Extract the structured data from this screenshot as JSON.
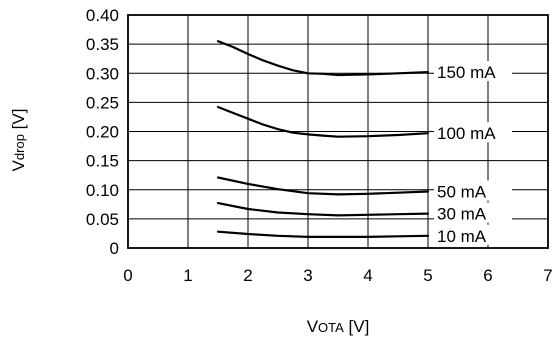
{
  "chart_data": {
    "type": "line",
    "xlabel": {
      "main": "V",
      "sub": "OTA",
      "unit": " [V]"
    },
    "ylabel": {
      "main": "V",
      "sub": "drop",
      "unit": " [V]"
    },
    "xlim": [
      0,
      7
    ],
    "ylim": [
      0,
      0.4
    ],
    "xticks": [
      "0",
      "1",
      "2",
      "3",
      "4",
      "5",
      "6",
      "7"
    ],
    "yticks": [
      "0",
      "0.05",
      "0.10",
      "0.15",
      "0.20",
      "0.25",
      "0.30",
      "0.35",
      "0.40"
    ],
    "grid": true,
    "series": [
      {
        "name": "150 mA",
        "x": [
          1.5,
          1.75,
          2.0,
          2.25,
          2.5,
          2.75,
          3.0,
          3.25,
          3.5,
          4.0,
          4.5,
          5.0
        ],
        "y": [
          0.355,
          0.345,
          0.333,
          0.322,
          0.313,
          0.305,
          0.3,
          0.299,
          0.297,
          0.298,
          0.3,
          0.302
        ]
      },
      {
        "name": "100 mA",
        "x": [
          1.5,
          1.75,
          2.0,
          2.25,
          2.5,
          2.75,
          3.0,
          3.25,
          3.5,
          4.0,
          4.5,
          5.0
        ],
        "y": [
          0.242,
          0.232,
          0.222,
          0.212,
          0.204,
          0.198,
          0.195,
          0.193,
          0.191,
          0.192,
          0.194,
          0.197
        ]
      },
      {
        "name": "50 mA",
        "x": [
          1.5,
          2.0,
          2.5,
          3.0,
          3.5,
          4.0,
          4.5,
          5.0
        ],
        "y": [
          0.121,
          0.11,
          0.101,
          0.094,
          0.092,
          0.093,
          0.095,
          0.097
        ]
      },
      {
        "name": "30 mA",
        "x": [
          1.5,
          2.0,
          2.5,
          3.0,
          3.5,
          4.0,
          4.5,
          5.0
        ],
        "y": [
          0.077,
          0.067,
          0.061,
          0.058,
          0.056,
          0.057,
          0.058,
          0.059
        ]
      },
      {
        "name": "10 mA",
        "x": [
          1.5,
          2.0,
          2.5,
          3.0,
          3.5,
          4.0,
          4.5,
          5.0
        ],
        "y": [
          0.028,
          0.024,
          0.021,
          0.019,
          0.019,
          0.019,
          0.02,
          0.021
        ]
      }
    ]
  }
}
